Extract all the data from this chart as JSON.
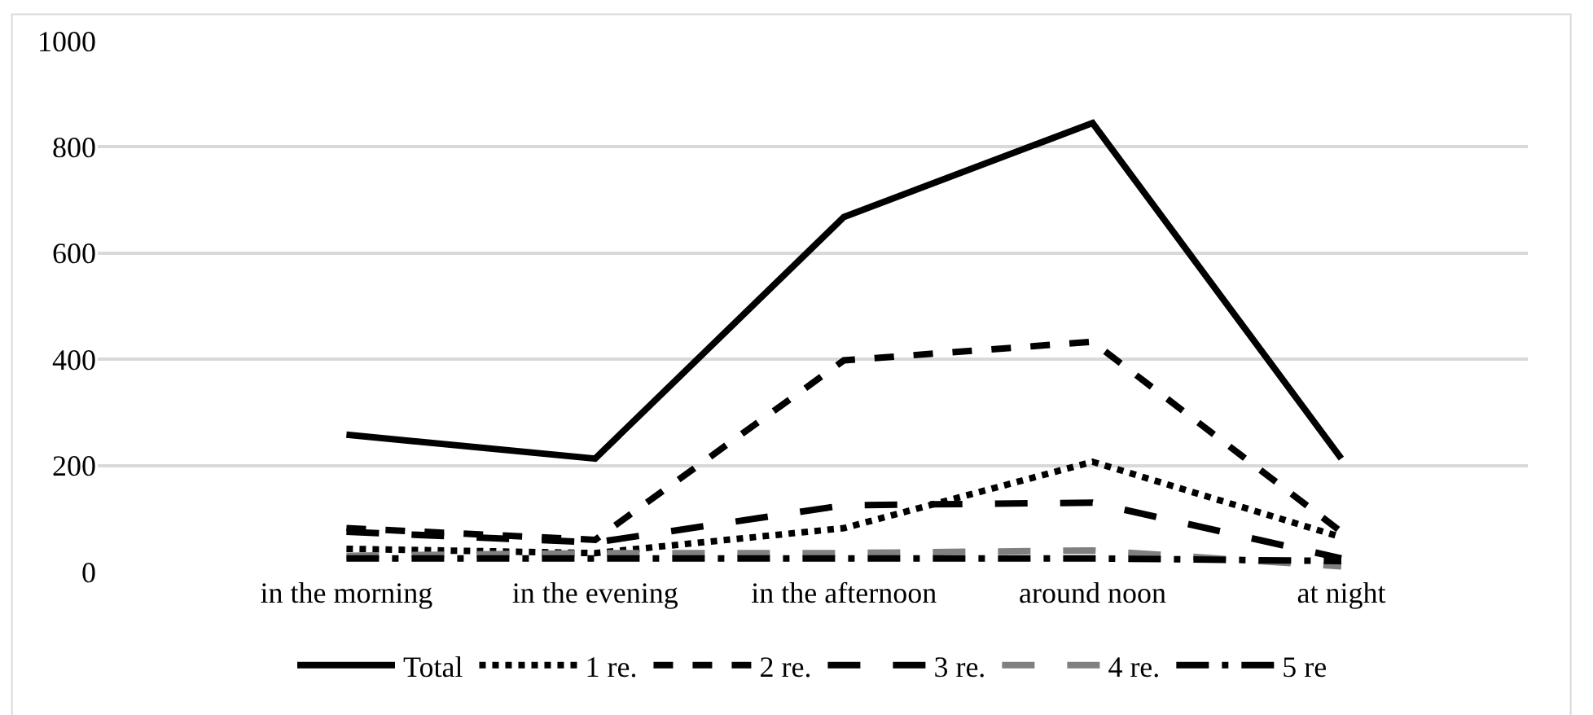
{
  "chart_data": {
    "type": "line",
    "categories": [
      "in the morning",
      "in the evening",
      "in the afternoon",
      "around noon",
      "at night"
    ],
    "series": [
      {
        "name": "Total",
        "color": "#000000",
        "line_style": "solid",
        "values": [
          258,
          213,
          668,
          845,
          213
        ]
      },
      {
        "name": "1 re.",
        "color": "#000000",
        "line_style": "dotted",
        "values": [
          43,
          35,
          82,
          207,
          65
        ]
      },
      {
        "name": "2 re.",
        "color": "#000000",
        "line_style": "dashed",
        "values": [
          82,
          60,
          398,
          433,
          75
        ]
      },
      {
        "name": "3 re.",
        "color": "#000000",
        "line_style": "longdash",
        "values": [
          75,
          55,
          125,
          130,
          25
        ]
      },
      {
        "name": "4 re.",
        "color": "#808080",
        "line_style": "longdash",
        "values": [
          30,
          35,
          35,
          40,
          10
        ]
      },
      {
        "name": "5 re",
        "color": "#000000",
        "line_style": "longdashdot",
        "values": [
          25,
          25,
          25,
          25,
          20
        ]
      }
    ],
    "ylim": [
      0,
      1000
    ],
    "yticks": [
      0,
      200,
      400,
      600,
      800,
      1000
    ],
    "grid": "y",
    "legend": "bottom",
    "marker": "none"
  }
}
